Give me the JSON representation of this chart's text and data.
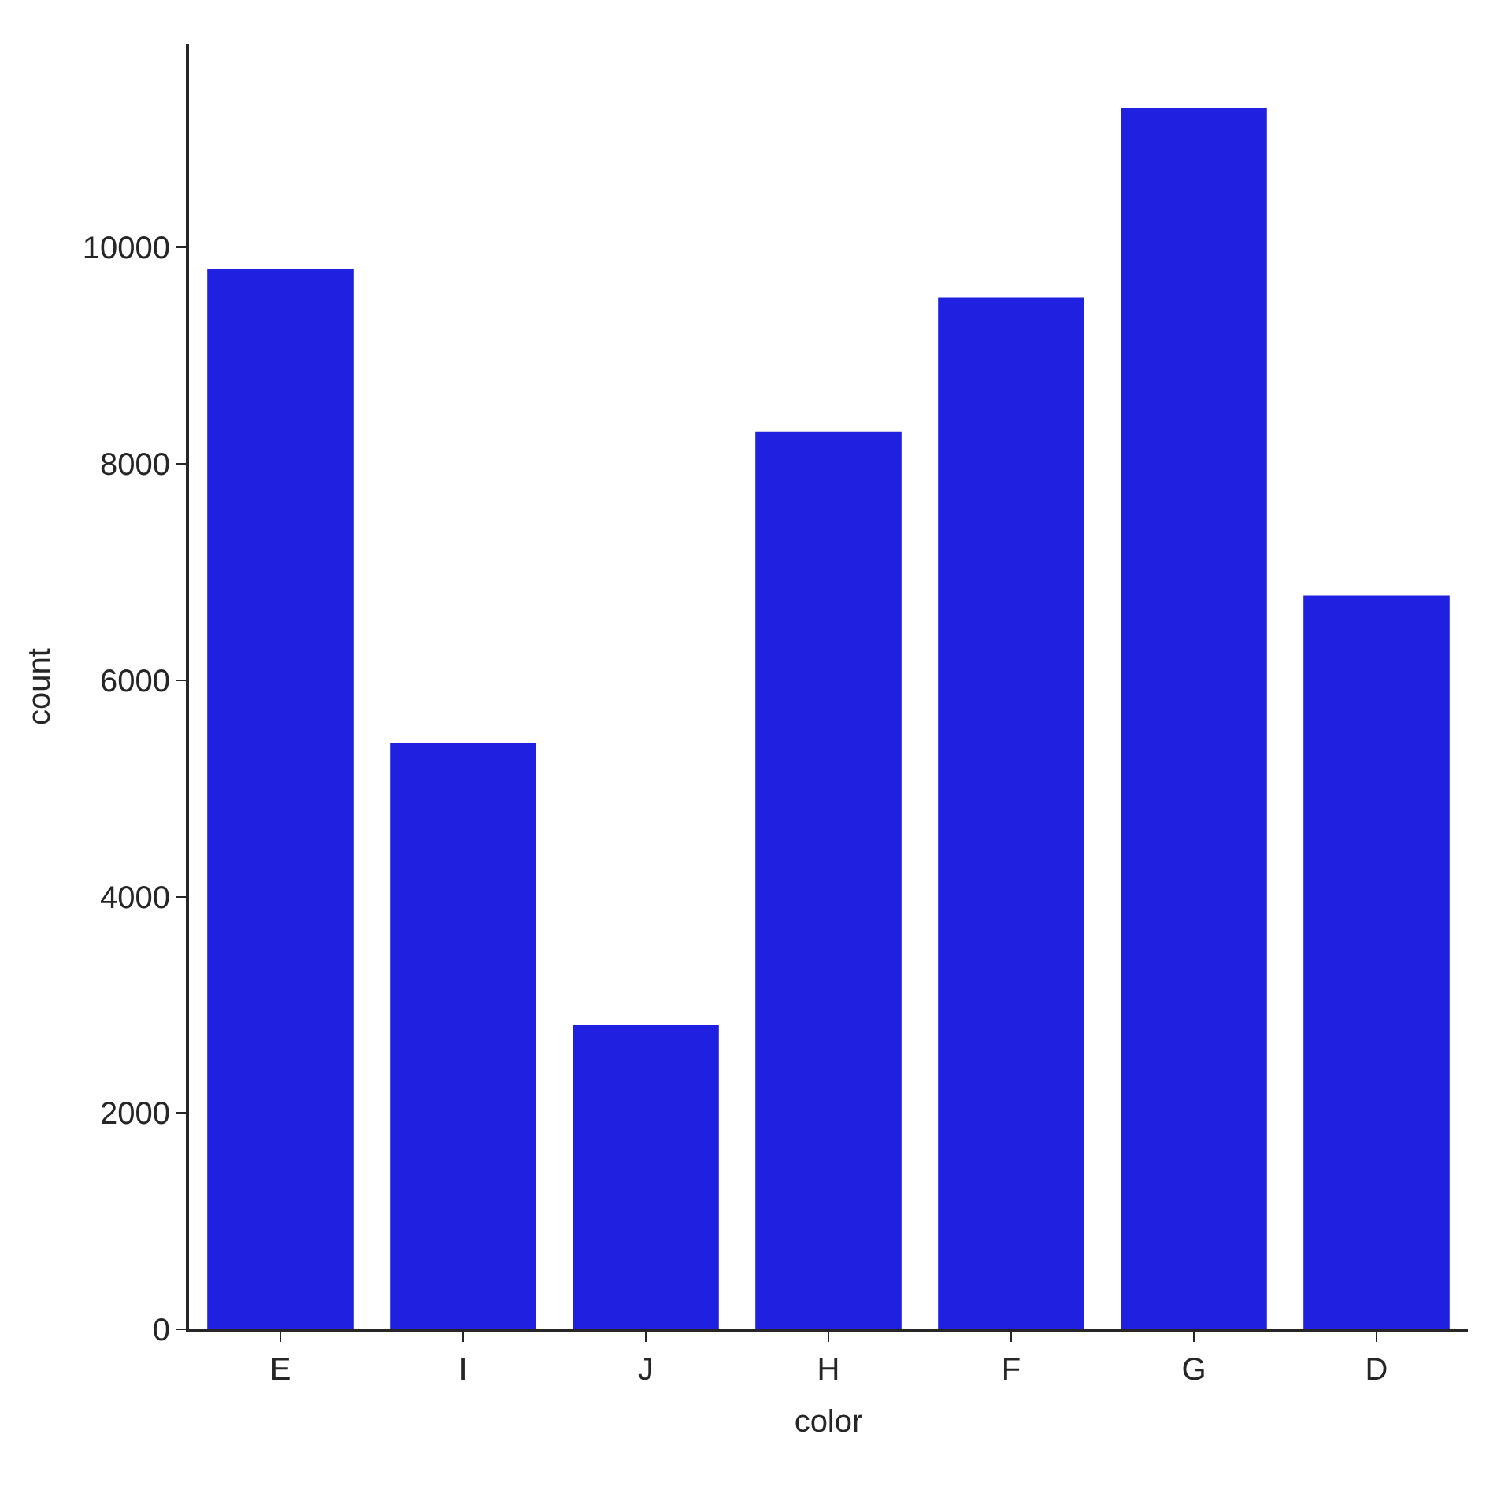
{
  "chart_data": {
    "type": "bar",
    "xlabel": "color",
    "ylabel": "count",
    "categories": [
      "E",
      "I",
      "J",
      "H",
      "F",
      "G",
      "D"
    ],
    "values": [
      9800,
      5420,
      2810,
      8300,
      9540,
      11290,
      6780
    ],
    "color": "#2020e0",
    "ylim": [
      0,
      11880
    ],
    "yticks": [
      0,
      2000,
      4000,
      6000,
      8000,
      10000
    ]
  }
}
